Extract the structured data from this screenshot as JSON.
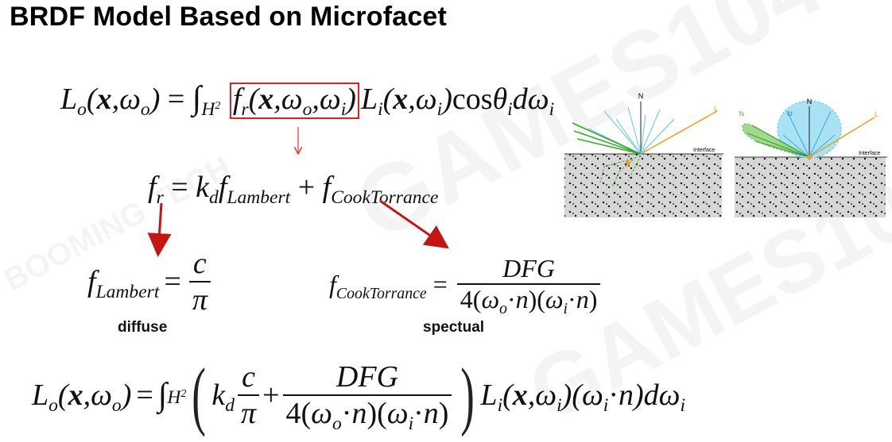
{
  "slide": {
    "title": "BRDF Model Based on Microfacet"
  },
  "labels": {
    "diffuse": "diffuse",
    "specular": "spectual",
    "interface_left": "Interface",
    "interface_right": "Interface",
    "normal_left": "N",
    "normal_right": "N",
    "light_left": "L",
    "light_right": "L",
    "fs": "fs",
    "fd": "fd"
  },
  "watermark": {
    "text1": "GAMES104",
    "text2": "BOOMING TECH"
  },
  "colors": {
    "red": "#d11a1a",
    "box": "#e02020",
    "green": "#3aa82a",
    "cyan": "#5bc8e8",
    "orange": "#f29a1f"
  }
}
